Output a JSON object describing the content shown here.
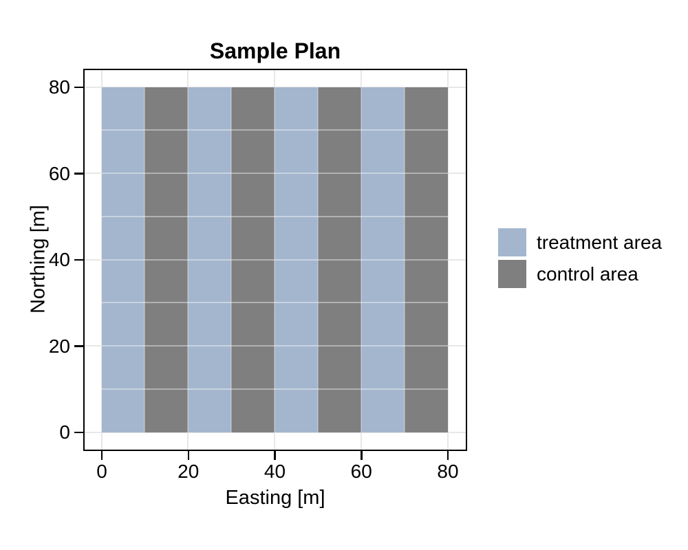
{
  "chart_data": {
    "type": "heatmap",
    "title": "Sample Plan",
    "xlabel": "Easting [m]",
    "ylabel": "Northing [m]",
    "xlim": [
      0,
      80
    ],
    "ylim": [
      0,
      80
    ],
    "x_ticks": [
      0,
      20,
      40,
      60,
      80
    ],
    "y_ticks": [
      0,
      20,
      40,
      60,
      80
    ],
    "x_minor_ticks": [
      10,
      30,
      50,
      70
    ],
    "y_minor_ticks": [
      10,
      30,
      50,
      70
    ],
    "grid": true,
    "stripe_width_m": 10,
    "tile_size_m": 10,
    "stripes": [
      {
        "from": 0,
        "to": 10,
        "category": "treatment area"
      },
      {
        "from": 10,
        "to": 20,
        "category": "control area"
      },
      {
        "from": 20,
        "to": 30,
        "category": "treatment area"
      },
      {
        "from": 30,
        "to": 40,
        "category": "control area"
      },
      {
        "from": 40,
        "to": 50,
        "category": "treatment area"
      },
      {
        "from": 50,
        "to": 60,
        "category": "control area"
      },
      {
        "from": 60,
        "to": 70,
        "category": "treatment area"
      },
      {
        "from": 70,
        "to": 80,
        "category": "control area"
      }
    ],
    "colors": {
      "treatment area": "#a3b6ce",
      "control area": "#7f7f7f"
    },
    "panel_border_color": "#000000",
    "gridline_color": "#e7e7e7",
    "legend_position": "right",
    "legend": [
      {
        "label": "treatment area",
        "category": "treatment area"
      },
      {
        "label": "control area",
        "category": "control area"
      }
    ]
  }
}
